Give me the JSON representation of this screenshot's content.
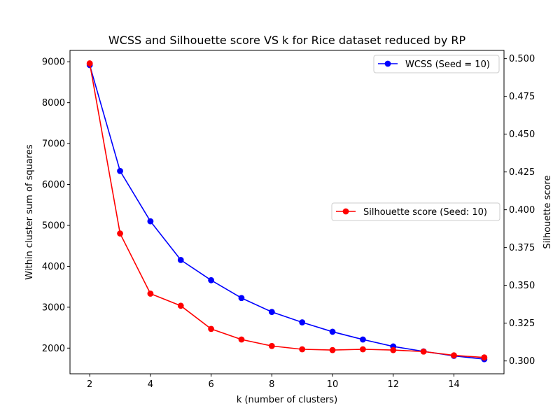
{
  "chart_data": {
    "type": "line",
    "title": "WCSS and Silhouette score VS k for Rice dataset reduced by RP",
    "xlabel": "k (number of clusters)",
    "ylabel_left": "Within cluster sum of squares",
    "ylabel_right": "Silhouette score",
    "x": [
      2,
      3,
      4,
      5,
      6,
      7,
      8,
      9,
      10,
      11,
      12,
      13,
      14,
      15
    ],
    "xlim": [
      1.35,
      15.65
    ],
    "xticks": [
      2,
      4,
      6,
      8,
      10,
      12,
      14
    ],
    "ylim_left": [
      1372,
      9278
    ],
    "yticks_left": [
      2000,
      3000,
      4000,
      5000,
      6000,
      7000,
      8000,
      9000
    ],
    "ylim_right": [
      0.2915,
      0.5054
    ],
    "yticks_right": [
      "0.300",
      "0.325",
      "0.350",
      "0.375",
      "0.400",
      "0.425",
      "0.450",
      "0.475",
      "0.500"
    ],
    "series": [
      {
        "name": "WCSS (Seed = 10)",
        "axis": "left",
        "color": "#0000ff",
        "values": [
          8920,
          6330,
          5100,
          4155,
          3660,
          3225,
          2885,
          2630,
          2400,
          2210,
          2040,
          1920,
          1810,
          1730
        ]
      },
      {
        "name": "Silhouette score (Seed: 10)",
        "axis": "right",
        "color": "#ff0000",
        "values": [
          0.4968,
          0.3843,
          0.3445,
          0.3365,
          0.3212,
          0.3142,
          0.3099,
          0.3077,
          0.3072,
          0.3077,
          0.3072,
          0.3062,
          0.3037,
          0.3023
        ]
      }
    ],
    "legend_positions": [
      "upper right",
      "center right"
    ],
    "grid": false
  }
}
